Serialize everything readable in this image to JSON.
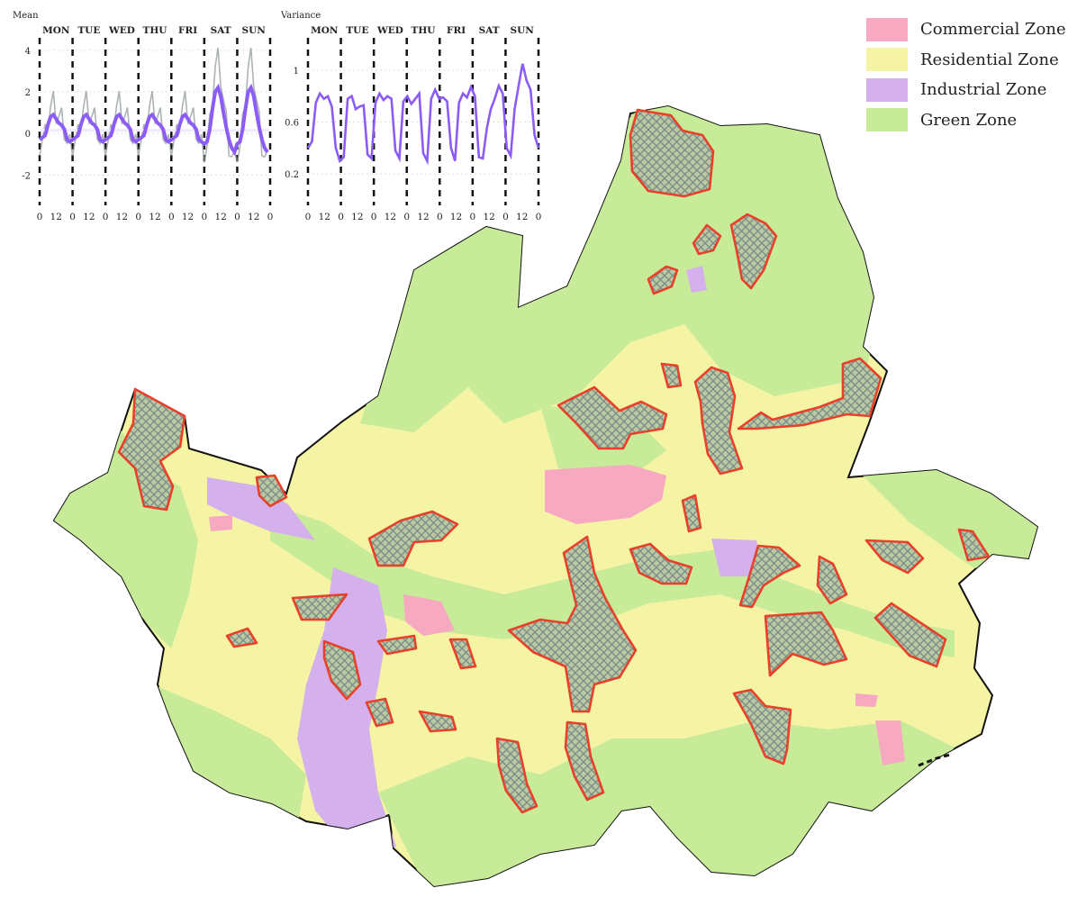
{
  "colors": {
    "commercial": "#f6a9c0",
    "residential": "#f4f4a4",
    "industrial": "#d4b0ec",
    "green": "#c8eb9a",
    "boundary": "#111111",
    "hotspot_stroke": "#e8402a",
    "hotspot_hatch": "#7a8a8a",
    "mean_line": "#8b5cf6",
    "variance_line": "#8b5cf6",
    "gray_series": "#8a9396"
  },
  "legend": {
    "items": [
      {
        "key": "commercial",
        "label": "Commercial Zone"
      },
      {
        "key": "residential",
        "label": "Residential Zone"
      },
      {
        "key": "industrial",
        "label": "Industrial Zone"
      },
      {
        "key": "green",
        "label": "Green Zone"
      }
    ]
  },
  "chart_data": [
    {
      "type": "line",
      "title": "Mean",
      "days": [
        "MON",
        "TUE",
        "WED",
        "THU",
        "FRI",
        "SAT",
        "SUN"
      ],
      "x_ticks": [
        "0",
        "12",
        "0",
        "12",
        "0",
        "12",
        "0",
        "12",
        "0",
        "12",
        "0",
        "12",
        "0",
        "12",
        "0"
      ],
      "y_ticks": [
        "-2",
        "0",
        "2",
        "4"
      ],
      "ylim": [
        -3.2,
        4.6
      ],
      "hours_per_day": 24,
      "grid": true,
      "series_values_per_day": [
        -0.3,
        -0.2,
        -0.1,
        0.4,
        0.8,
        0.9,
        0.7,
        0.5,
        0.4,
        0.2,
        -0.3,
        -0.4
      ],
      "weekend_values_per_day": [
        -0.5,
        -0.4,
        0.2,
        1.2,
        2.0,
        2.2,
        1.8,
        1.0,
        0.3,
        -0.3,
        -0.7,
        -0.9
      ],
      "reference_line_y": 0.15
    },
    {
      "type": "line",
      "title": "Variance",
      "days": [
        "MON",
        "TUE",
        "WED",
        "THU",
        "FRI",
        "SAT",
        "SUN"
      ],
      "x_ticks": [
        "0",
        "12",
        "0",
        "12",
        "0",
        "12",
        "0",
        "12",
        "0",
        "12",
        "0",
        "12",
        "0",
        "12",
        "0"
      ],
      "y_ticks": [
        "0.2",
        "0.6",
        "1"
      ],
      "ylim": [
        0.0,
        1.25
      ],
      "grid": true,
      "values": [
        0.4,
        0.45,
        0.75,
        0.82,
        0.78,
        0.8,
        0.72,
        0.4,
        0.3,
        0.33,
        0.78,
        0.8,
        0.7,
        0.72,
        0.73,
        0.35,
        0.32,
        0.75,
        0.82,
        0.77,
        0.8,
        0.78,
        0.38,
        0.32,
        0.76,
        0.8,
        0.74,
        0.78,
        0.82,
        0.36,
        0.3,
        0.78,
        0.85,
        0.78,
        0.79,
        0.76,
        0.4,
        0.3,
        0.75,
        0.82,
        0.79,
        0.87,
        0.8,
        0.33,
        0.32,
        0.55,
        0.7,
        0.78,
        0.88,
        0.82,
        0.4,
        0.34,
        0.7,
        0.88,
        1.05,
        0.92,
        0.85,
        0.5,
        0.4
      ]
    }
  ]
}
